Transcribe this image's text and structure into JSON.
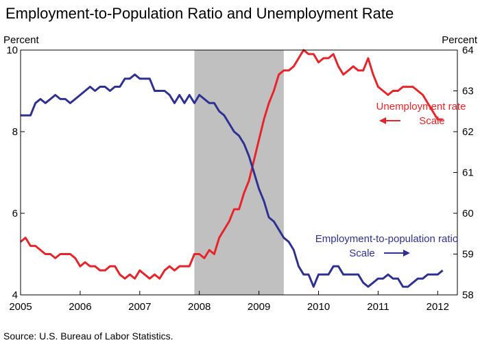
{
  "chart_data": {
    "type": "line",
    "title": "Employment-to-Population Ratio and Unemployment Rate",
    "source": "Source: U.S. Bureau of Labor Statistics.",
    "left_axis": {
      "unit_label": "Percent",
      "ylim": [
        4,
        10
      ],
      "ticks": [
        "10",
        "8",
        "6",
        "4"
      ]
    },
    "right_axis": {
      "unit_label": "Percent",
      "ylim": [
        58,
        64
      ],
      "ticks": [
        "64",
        "63",
        "62",
        "61",
        "60",
        "59",
        "58"
      ]
    },
    "x_axis": {
      "xlim": [
        2005,
        2012.33
      ],
      "ticks": [
        "2005",
        "2006",
        "2007",
        "2008",
        "2009",
        "2010",
        "2011",
        "2012"
      ]
    },
    "recession_shading": {
      "start": "2007-12",
      "end": "2009-06",
      "color": "#c0c0c0"
    },
    "annotations": {
      "unemployment_line1": "Unemployment rate",
      "unemployment_line2": "Scale",
      "emp_line1": "Employment-to-population ratio",
      "emp_line2": "Scale"
    },
    "series": [
      {
        "name": "Unemployment rate",
        "axis": "left",
        "color": "#e8242a",
        "start": "2005-01",
        "frequency": "monthly",
        "values": [
          5.3,
          5.4,
          5.2,
          5.2,
          5.1,
          5.0,
          5.0,
          4.9,
          5.0,
          5.0,
          5.0,
          4.9,
          4.7,
          4.8,
          4.7,
          4.7,
          4.6,
          4.6,
          4.7,
          4.7,
          4.5,
          4.4,
          4.5,
          4.4,
          4.6,
          4.5,
          4.4,
          4.5,
          4.4,
          4.6,
          4.7,
          4.6,
          4.7,
          4.7,
          4.7,
          5.0,
          5.0,
          4.9,
          5.1,
          5.0,
          5.4,
          5.6,
          5.8,
          6.1,
          6.1,
          6.5,
          6.8,
          7.3,
          7.8,
          8.3,
          8.7,
          9.0,
          9.4,
          9.5,
          9.5,
          9.6,
          9.8,
          10.0,
          9.9,
          9.9,
          9.7,
          9.8,
          9.8,
          9.9,
          9.6,
          9.4,
          9.5,
          9.6,
          9.5,
          9.5,
          9.8,
          9.4,
          9.1,
          9.0,
          8.9,
          9.0,
          9.0,
          9.1,
          9.1,
          9.1,
          9.0,
          8.9,
          8.7,
          8.5,
          8.3,
          8.3
        ]
      },
      {
        "name": "Employment-to-population ratio",
        "axis": "right",
        "color": "#2e3192",
        "start": "2005-01",
        "frequency": "monthly",
        "values": [
          62.4,
          62.4,
          62.4,
          62.7,
          62.8,
          62.7,
          62.8,
          62.9,
          62.8,
          62.8,
          62.7,
          62.8,
          62.9,
          63.0,
          63.1,
          63.0,
          63.1,
          63.1,
          63.0,
          63.1,
          63.1,
          63.3,
          63.3,
          63.4,
          63.3,
          63.3,
          63.3,
          63.0,
          63.0,
          63.0,
          62.9,
          62.7,
          62.9,
          62.7,
          62.9,
          62.7,
          62.9,
          62.8,
          62.7,
          62.7,
          62.5,
          62.4,
          62.2,
          62.0,
          61.9,
          61.7,
          61.4,
          61.0,
          60.6,
          60.3,
          59.9,
          59.8,
          59.6,
          59.4,
          59.3,
          59.1,
          58.7,
          58.5,
          58.5,
          58.2,
          58.5,
          58.5,
          58.5,
          58.7,
          58.7,
          58.5,
          58.5,
          58.5,
          58.5,
          58.3,
          58.2,
          58.3,
          58.4,
          58.4,
          58.5,
          58.4,
          58.4,
          58.2,
          58.2,
          58.3,
          58.4,
          58.4,
          58.5,
          58.5,
          58.5,
          58.6
        ]
      }
    ]
  }
}
